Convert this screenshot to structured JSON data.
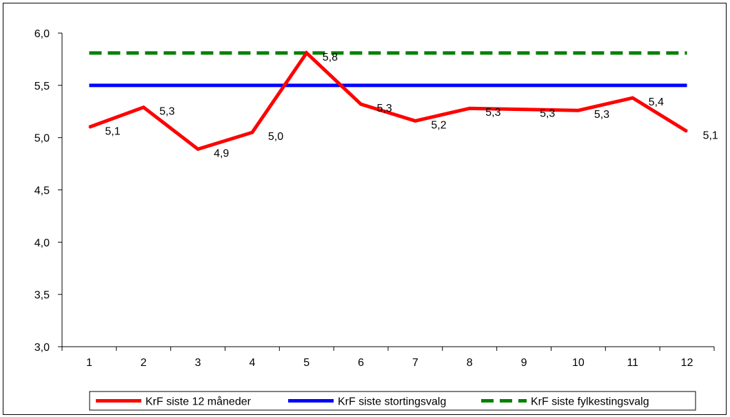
{
  "chart_data": {
    "type": "line",
    "x": [
      1,
      2,
      3,
      4,
      5,
      6,
      7,
      8,
      9,
      10,
      11,
      12
    ],
    "x_tick_labels": [
      "1",
      "2",
      "3",
      "4",
      "5",
      "6",
      "7",
      "8",
      "9",
      "10",
      "11",
      "12"
    ],
    "ylim": [
      3.0,
      6.0
    ],
    "y_ticks": [
      3.0,
      3.5,
      4.0,
      4.5,
      5.0,
      5.5,
      6.0
    ],
    "y_tick_labels": [
      "3,0",
      "3,5",
      "4,0",
      "4,5",
      "5,0",
      "5,5",
      "6,0"
    ],
    "series": [
      {
        "name": "KrF siste 12 måneder",
        "color": "#ff0000",
        "style": "solid",
        "values": [
          5.1,
          5.29,
          4.89,
          5.05,
          5.81,
          5.32,
          5.16,
          5.28,
          5.27,
          5.26,
          5.38,
          5.06
        ],
        "data_labels": [
          "5,1",
          "5,3",
          "4,9",
          "5,0",
          "5,8",
          "5,3",
          "5,2",
          "5,3",
          "5,3",
          "5,3",
          "5,4",
          "5,1"
        ]
      },
      {
        "name": "KrF siste stortingsvalg",
        "color": "#0000ff",
        "style": "solid",
        "values": [
          5.5,
          5.5,
          5.5,
          5.5,
          5.5,
          5.5,
          5.5,
          5.5,
          5.5,
          5.5,
          5.5,
          5.5
        ]
      },
      {
        "name": "KrF siste fylkestingsvalg",
        "color": "#008000",
        "style": "dashed",
        "values": [
          5.81,
          5.81,
          5.81,
          5.81,
          5.81,
          5.81,
          5.81,
          5.81,
          5.81,
          5.81,
          5.81,
          5.81
        ]
      }
    ],
    "grid": false,
    "legend": "bottom"
  }
}
